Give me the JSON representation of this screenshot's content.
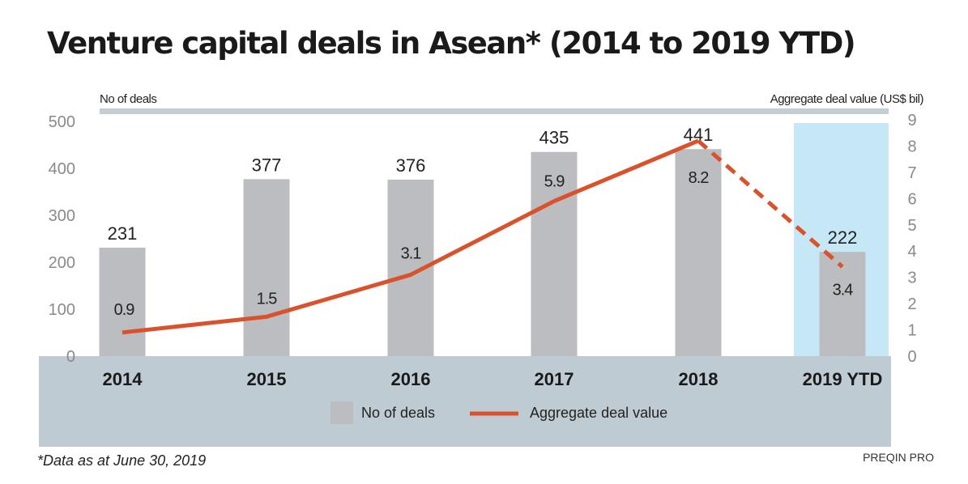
{
  "chart_data": {
    "type": "bar+line",
    "title": "Venture capital deals in Asean* (2014 to 2019 YTD)",
    "categories": [
      "2014",
      "2015",
      "2016",
      "2017",
      "2018",
      "2019 YTD"
    ],
    "left_axis": {
      "label": "No of deals",
      "ylim": [
        0,
        500
      ],
      "ticks": [
        "0",
        "100",
        "200",
        "300",
        "400",
        "500"
      ]
    },
    "right_axis": {
      "label": "Aggregate deal value (US$ bil)",
      "ylim": [
        0,
        9
      ],
      "ticks": [
        "0",
        "1",
        "2",
        "3",
        "4",
        "5",
        "6",
        "7",
        "8",
        "9"
      ]
    },
    "series": [
      {
        "name": "No of deals",
        "type": "bar",
        "values": [
          231,
          377,
          376,
          435,
          441,
          222
        ],
        "labels": [
          "231",
          "377",
          "376",
          "435",
          "441",
          "222"
        ],
        "color": "#bcbdc0"
      },
      {
        "name": "Aggregate deal value",
        "type": "line",
        "values": [
          0.9,
          1.5,
          3.1,
          5.9,
          8.2,
          3.4
        ],
        "labels": [
          "0.9",
          "1.5",
          "3.1",
          "5.9",
          "8.2",
          "3.4"
        ],
        "color": "#d9522b",
        "dashed_last_segment": true
      }
    ],
    "highlight_category": "2019 YTD",
    "highlight_color": "#c6e7f6",
    "legend": [
      "No of deals",
      "Aggregate deal value"
    ],
    "legend_position": "bottom",
    "footnote": "*Data as at June 30, 2019",
    "source": "PREQIN PRO"
  }
}
